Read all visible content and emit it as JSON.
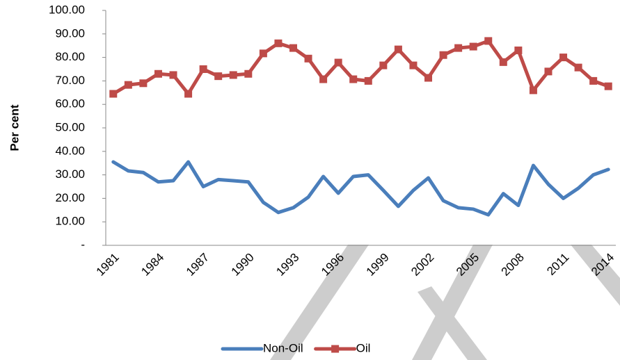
{
  "chart_data": {
    "type": "line",
    "y_label": "Per cent",
    "categories": [
      "1981",
      null,
      null,
      "1984",
      null,
      null,
      "1987",
      null,
      null,
      "1990",
      null,
      null,
      "1993",
      null,
      null,
      "1996",
      null,
      null,
      "1999",
      null,
      null,
      "2002",
      null,
      null,
      "2005",
      null,
      null,
      "2008",
      null,
      null,
      "2011",
      null,
      null,
      "2014"
    ],
    "series": [
      {
        "name": "Non-Oil",
        "color": "#4a7ebb",
        "marker": "none",
        "values": [
          35.5,
          31.7,
          31,
          27,
          27.5,
          35.5,
          25,
          28,
          27.5,
          27,
          18.3,
          14,
          16,
          20.5,
          29.3,
          22.2,
          29.3,
          30,
          23.4,
          16.6,
          23.4,
          28.7,
          19,
          16,
          15.4,
          13,
          22,
          17,
          34,
          26,
          20,
          24.3,
          30,
          32.3
        ]
      },
      {
        "name": "Oil",
        "color": "#be4b48",
        "marker": "square",
        "values": [
          64.5,
          68.3,
          69,
          73,
          72.5,
          64.5,
          75,
          72,
          72.5,
          73,
          81.7,
          86,
          84,
          79.5,
          70.7,
          77.8,
          70.7,
          70,
          76.6,
          83.4,
          76.6,
          71.3,
          81,
          84,
          84.6,
          87,
          78,
          83,
          66,
          74,
          80,
          75.7,
          70,
          67.7
        ]
      }
    ],
    "ylim": [
      0,
      100
    ],
    "yticks": [
      {
        "value": 0,
        "label": "-"
      },
      {
        "value": 10,
        "label": "10.00"
      },
      {
        "value": 20,
        "label": "20.00"
      },
      {
        "value": 30,
        "label": "30.00"
      },
      {
        "value": 40,
        "label": "40.00"
      },
      {
        "value": 50,
        "label": "50.00"
      },
      {
        "value": 60,
        "label": "60.00"
      },
      {
        "value": 70,
        "label": "70.00"
      },
      {
        "value": 80,
        "label": "80.00"
      },
      {
        "value": 90,
        "label": "90.00"
      },
      {
        "value": 100,
        "label": "100.00"
      }
    ],
    "grid": false,
    "legend": "bottom"
  }
}
